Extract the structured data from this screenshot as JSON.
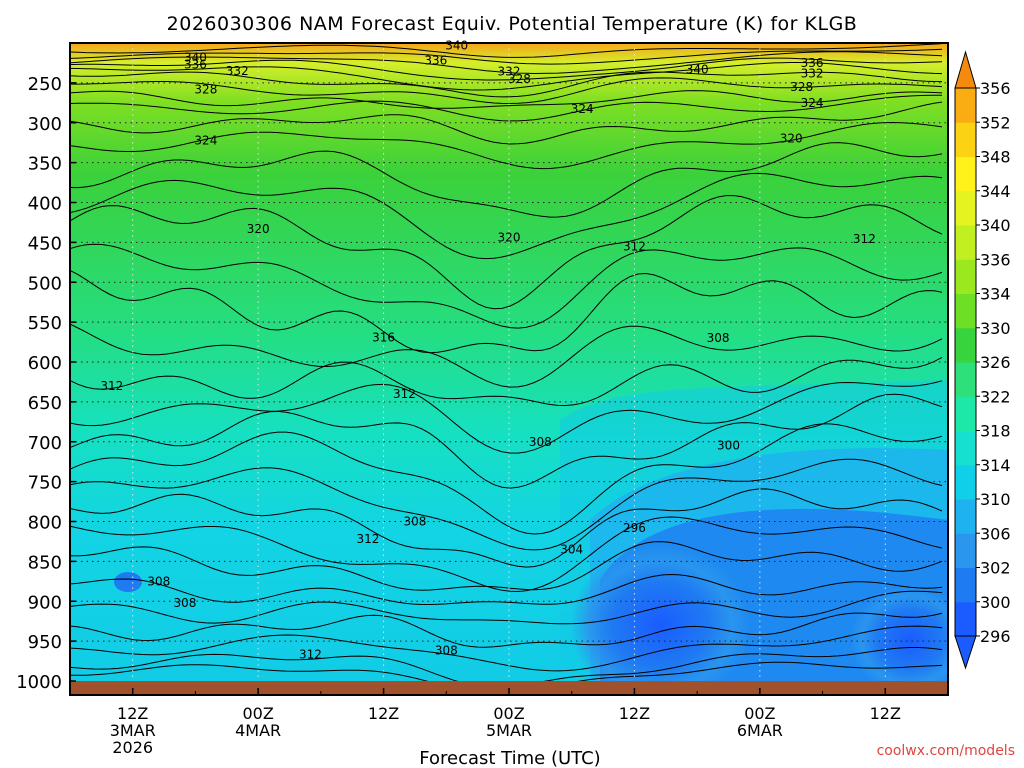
{
  "chart_data": {
    "type": "heatmap",
    "title": "2026030306 NAM Forecast Equiv. Potential Temperature (K) for KLGB",
    "xlabel": "Forecast Time (UTC)",
    "ylabel": "",
    "credit": "coolwx.com/models",
    "x_range_hours": [
      0,
      84
    ],
    "y_range_hpa": [
      200,
      1000
    ],
    "pressure_ticks": [
      250,
      300,
      350,
      400,
      450,
      500,
      550,
      600,
      650,
      700,
      750,
      800,
      850,
      900,
      950,
      1000
    ],
    "time_ticks": [
      {
        "hour": 6,
        "l1": "12Z",
        "l2": "3MAR",
        "l3": "2026"
      },
      {
        "hour": 18,
        "l1": "00Z",
        "l2": "4MAR",
        "l3": ""
      },
      {
        "hour": 30,
        "l1": "12Z",
        "l2": "",
        "l3": ""
      },
      {
        "hour": 42,
        "l1": "00Z",
        "l2": "5MAR",
        "l3": ""
      },
      {
        "hour": 54,
        "l1": "12Z",
        "l2": "",
        "l3": ""
      },
      {
        "hour": 66,
        "l1": "00Z",
        "l2": "6MAR",
        "l3": ""
      },
      {
        "hour": 78,
        "l1": "12Z",
        "l2": "",
        "l3": ""
      }
    ],
    "colorbar": {
      "levels": [
        296,
        300,
        302,
        306,
        310,
        314,
        318,
        322,
        326,
        330,
        334,
        336,
        340,
        344,
        348,
        352,
        356
      ],
      "labels": [
        "296",
        "300",
        "302",
        "306",
        "310",
        "314",
        "318",
        "322",
        "326",
        "330",
        "334",
        "336",
        "340",
        "344",
        "348",
        "352",
        "356"
      ],
      "colors": [
        "#1a5cff",
        "#1f7bf2",
        "#2b96ee",
        "#1fb2f0",
        "#10cfe8",
        "#16e0d0",
        "#1ee8a8",
        "#2ee07a",
        "#37d43e",
        "#6ddf24",
        "#9be81e",
        "#c2ef20",
        "#e5f31e",
        "#fff21a",
        "#fcd215",
        "#f9ad12",
        "#f58a0e"
      ]
    },
    "contour_labels": [
      {
        "text": "340",
        "hour": 12.0,
        "p": 218
      },
      {
        "text": "336",
        "hour": 12.0,
        "p": 227
      },
      {
        "text": "332",
        "hour": 16.0,
        "p": 235
      },
      {
        "text": "328",
        "hour": 13.0,
        "p": 258
      },
      {
        "text": "324",
        "hour": 13.0,
        "p": 322
      },
      {
        "text": "320",
        "hour": 18.0,
        "p": 433
      },
      {
        "text": "316",
        "hour": 30.0,
        "p": 569
      },
      {
        "text": "312",
        "hour": 4.0,
        "p": 630
      },
      {
        "text": "312",
        "hour": 32.0,
        "p": 640
      },
      {
        "text": "308",
        "hour": 33.0,
        "p": 800
      },
      {
        "text": "312",
        "hour": 28.5,
        "p": 822
      },
      {
        "text": "308",
        "hour": 8.5,
        "p": 875
      },
      {
        "text": "308",
        "hour": 11.0,
        "p": 902
      },
      {
        "text": "312",
        "hour": 23.0,
        "p": 967
      },
      {
        "text": "308",
        "hour": 36.0,
        "p": 962
      },
      {
        "text": "340",
        "hour": 37.0,
        "p": 203
      },
      {
        "text": "336",
        "hour": 35.0,
        "p": 222
      },
      {
        "text": "332",
        "hour": 42.0,
        "p": 236
      },
      {
        "text": "328",
        "hour": 43.0,
        "p": 245
      },
      {
        "text": "324",
        "hour": 49.0,
        "p": 283
      },
      {
        "text": "320",
        "hour": 42.0,
        "p": 444
      },
      {
        "text": "312",
        "hour": 54.0,
        "p": 455
      },
      {
        "text": "308",
        "hour": 62.0,
        "p": 570
      },
      {
        "text": "308",
        "hour": 45.0,
        "p": 700
      },
      {
        "text": "300",
        "hour": 63.0,
        "p": 705
      },
      {
        "text": "304",
        "hour": 48.0,
        "p": 835
      },
      {
        "text": "296",
        "hour": 54.0,
        "p": 808
      },
      {
        "text": "340",
        "hour": 60.0,
        "p": 233
      },
      {
        "text": "336",
        "hour": 71.0,
        "p": 225
      },
      {
        "text": "332",
        "hour": 71.0,
        "p": 238
      },
      {
        "text": "328",
        "hour": 70.0,
        "p": 255
      },
      {
        "text": "324",
        "hour": 71.0,
        "p": 275
      },
      {
        "text": "320",
        "hour": 69.0,
        "p": 320
      },
      {
        "text": "312",
        "hour": 76.0,
        "p": 446
      }
    ]
  }
}
